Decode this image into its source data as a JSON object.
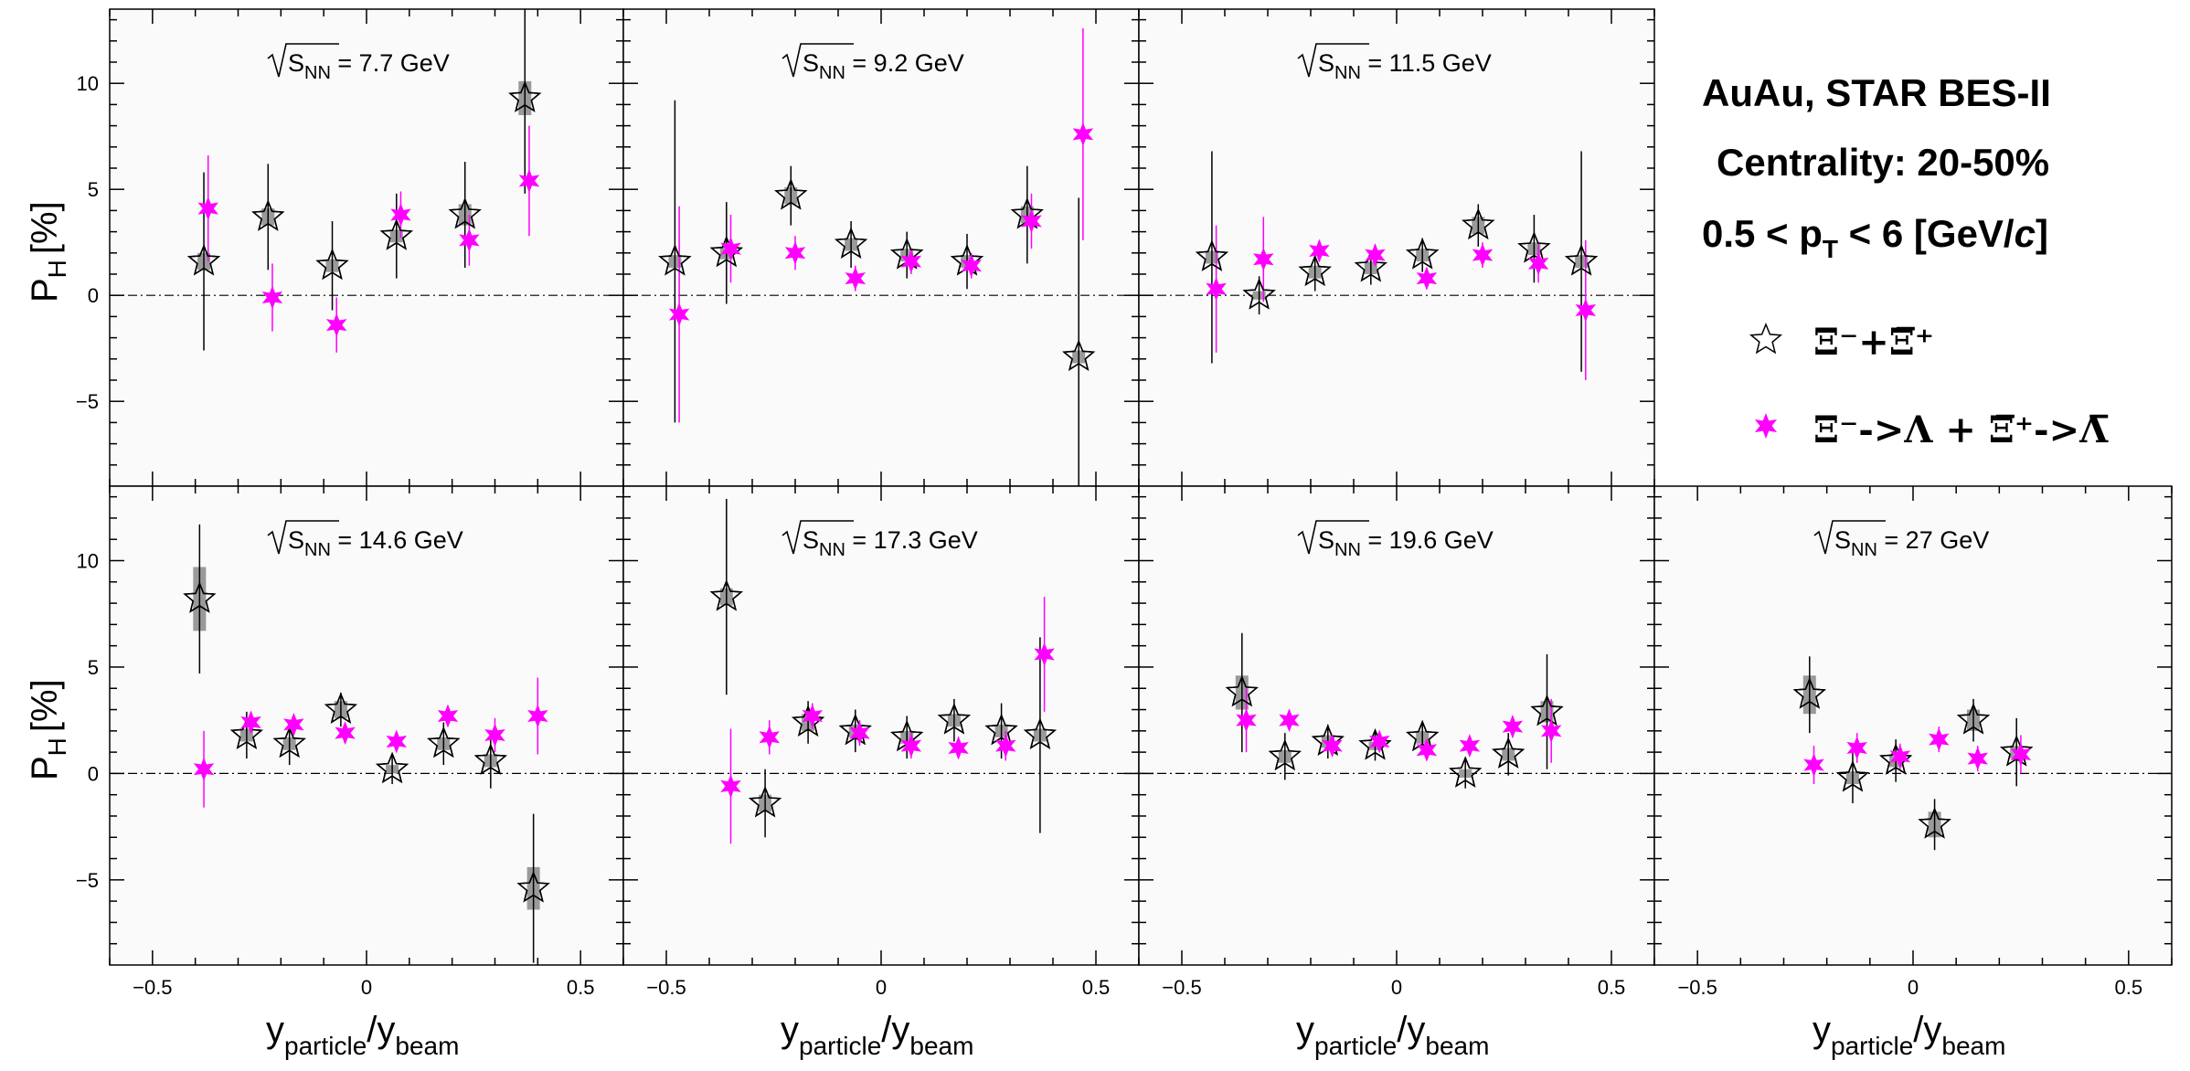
{
  "chart_data": {
    "type": "scatter",
    "title_lines": [
      "AuAu, STAR BES-II",
      "Centrality: 20-50%"
    ],
    "kinematic_line": {
      "prefix": "0.5 < p",
      "sub": "T",
      "suffix": " < 6 [GeV/",
      "italic": "c",
      "end": "]"
    },
    "ylabel": {
      "main": "P",
      "sub": "H",
      "unit": "[%]"
    },
    "xlabel": {
      "part1": "y",
      "sub1": "particle",
      "part2": "/y",
      "sub2": "beam"
    },
    "xlim": [
      -0.6,
      0.6
    ],
    "ylim": [
      -9,
      13.5
    ],
    "x_ticks": [
      -0.5,
      0,
      0.5
    ],
    "x_tick_labels": [
      "−0.5",
      "0",
      "0.5"
    ],
    "y_ticks": [
      -5,
      0,
      5,
      10
    ],
    "y_tick_labels": [
      "−5",
      "0",
      "5",
      "10"
    ],
    "legend": [
      {
        "name": "Ξ⁻+Ξ̅⁺",
        "marker": "open-star",
        "color": "#ffffff"
      },
      {
        "name": "Ξ⁻->Λ + Ξ̅⁺->Λ̅",
        "marker": "full-star",
        "color": "#ff00ff"
      }
    ],
    "colors": {
      "series_open": "#ffffff",
      "series_magenta": "#ff00ff",
      "sys_box": "#9a9a9a",
      "panel_bg": "#fafafa"
    },
    "panels": [
      {
        "energy_label": "7.7 GeV",
        "row": 0,
        "col": 0,
        "open": [
          {
            "x": -0.38,
            "y": 1.6,
            "err": 4.2,
            "sys": 0.4
          },
          {
            "x": -0.23,
            "y": 3.7,
            "err": 2.5,
            "sys": 0.4
          },
          {
            "x": -0.08,
            "y": 1.4,
            "err": 2.1,
            "sys": 0.3
          },
          {
            "x": 0.07,
            "y": 2.8,
            "err": 2.0,
            "sys": 0.3
          },
          {
            "x": 0.23,
            "y": 3.8,
            "err": 2.5,
            "sys": 0.5
          },
          {
            "x": 0.37,
            "y": 9.3,
            "err": 4.5,
            "sys": 0.8
          }
        ],
        "magenta": [
          {
            "x": -0.37,
            "y": 4.1,
            "err": 2.5
          },
          {
            "x": -0.22,
            "y": -0.1,
            "err": 1.6
          },
          {
            "x": -0.07,
            "y": -1.4,
            "err": 1.3
          },
          {
            "x": 0.08,
            "y": 3.8,
            "err": 1.1
          },
          {
            "x": 0.24,
            "y": 2.6,
            "err": 1.2
          },
          {
            "x": 0.38,
            "y": 5.4,
            "err": 2.6
          }
        ]
      },
      {
        "energy_label": "9.2 GeV",
        "row": 0,
        "col": 1,
        "open": [
          {
            "x": -0.48,
            "y": 1.6,
            "err": 7.6,
            "sys": 0.3
          },
          {
            "x": -0.36,
            "y": 2.0,
            "err": 2.4,
            "sys": 0.3
          },
          {
            "x": -0.21,
            "y": 4.7,
            "err": 1.4,
            "sys": 0.4
          },
          {
            "x": -0.07,
            "y": 2.4,
            "err": 1.1,
            "sys": 0.3
          },
          {
            "x": 0.06,
            "y": 1.9,
            "err": 1.1,
            "sys": 0.3
          },
          {
            "x": 0.2,
            "y": 1.6,
            "err": 1.3,
            "sys": 0.3
          },
          {
            "x": 0.34,
            "y": 3.8,
            "err": 2.3,
            "sys": 0.4
          },
          {
            "x": 0.46,
            "y": -2.9,
            "err": 7.5,
            "sys": 0.3
          }
        ],
        "magenta": [
          {
            "x": -0.47,
            "y": -0.9,
            "err": 5.1
          },
          {
            "x": -0.35,
            "y": 2.2,
            "err": 1.6
          },
          {
            "x": -0.2,
            "y": 2.0,
            "err": 0.8
          },
          {
            "x": -0.06,
            "y": 0.8,
            "err": 0.6
          },
          {
            "x": 0.07,
            "y": 1.6,
            "err": 0.6
          },
          {
            "x": 0.21,
            "y": 1.4,
            "err": 0.6
          },
          {
            "x": 0.35,
            "y": 3.5,
            "err": 1.3
          },
          {
            "x": 0.47,
            "y": 7.6,
            "err": 5.0
          }
        ]
      },
      {
        "energy_label": "11.5 GeV",
        "row": 0,
        "col": 2,
        "open": [
          {
            "x": -0.43,
            "y": 1.8,
            "err": 5.0,
            "sys": 0.3
          },
          {
            "x": -0.32,
            "y": 0.0,
            "err": 0.9,
            "sys": 0.2
          },
          {
            "x": -0.19,
            "y": 1.1,
            "err": 0.9,
            "sys": 0.3
          },
          {
            "x": -0.06,
            "y": 1.3,
            "err": 0.8,
            "sys": 0.3
          },
          {
            "x": 0.06,
            "y": 1.9,
            "err": 0.8,
            "sys": 0.3
          },
          {
            "x": 0.19,
            "y": 3.3,
            "err": 1.0,
            "sys": 0.4
          },
          {
            "x": 0.32,
            "y": 2.2,
            "err": 1.6,
            "sys": 0.3
          },
          {
            "x": 0.43,
            "y": 1.6,
            "err": 5.2,
            "sys": 0.3
          }
        ],
        "magenta": [
          {
            "x": -0.42,
            "y": 0.3,
            "err": 3.0
          },
          {
            "x": -0.31,
            "y": 1.7,
            "err": 2.0
          },
          {
            "x": -0.18,
            "y": 2.1,
            "err": 0.5
          },
          {
            "x": -0.05,
            "y": 1.9,
            "err": 0.5
          },
          {
            "x": 0.07,
            "y": 0.8,
            "err": 0.5
          },
          {
            "x": 0.2,
            "y": 1.9,
            "err": 0.6
          },
          {
            "x": 0.33,
            "y": 1.5,
            "err": 0.9
          },
          {
            "x": 0.44,
            "y": -0.7,
            "err": 3.3
          }
        ]
      },
      {
        "energy_label": "14.6 GeV",
        "row": 1,
        "col": 0,
        "open": [
          {
            "x": -0.39,
            "y": 8.2,
            "err": 3.5,
            "sys": 1.5
          },
          {
            "x": -0.28,
            "y": 1.8,
            "err": 1.1,
            "sys": 0.3
          },
          {
            "x": -0.18,
            "y": 1.4,
            "err": 1.0,
            "sys": 0.3
          },
          {
            "x": -0.06,
            "y": 3.0,
            "err": 0.8,
            "sys": 0.4
          },
          {
            "x": 0.06,
            "y": 0.2,
            "err": 0.7,
            "sys": 0.2
          },
          {
            "x": 0.18,
            "y": 1.4,
            "err": 1.0,
            "sys": 0.3
          },
          {
            "x": 0.29,
            "y": 0.6,
            "err": 1.3,
            "sys": 0.3
          },
          {
            "x": 0.39,
            "y": -5.4,
            "err": 3.5,
            "sys": 1.0
          }
        ],
        "magenta": [
          {
            "x": -0.38,
            "y": 0.2,
            "err": 1.8
          },
          {
            "x": -0.27,
            "y": 2.4,
            "err": 0.5
          },
          {
            "x": -0.17,
            "y": 2.3,
            "err": 0.4
          },
          {
            "x": -0.05,
            "y": 1.9,
            "err": 0.4
          },
          {
            "x": 0.07,
            "y": 1.5,
            "err": 0.4
          },
          {
            "x": 0.19,
            "y": 2.7,
            "err": 0.4
          },
          {
            "x": 0.3,
            "y": 1.8,
            "err": 0.8
          },
          {
            "x": 0.4,
            "y": 2.7,
            "err": 1.8
          }
        ]
      },
      {
        "energy_label": "17.3 GeV",
        "row": 1,
        "col": 1,
        "open": [
          {
            "x": -0.36,
            "y": 8.3,
            "err": 4.6,
            "sys": 0.4
          },
          {
            "x": -0.27,
            "y": -1.4,
            "err": 1.6,
            "sys": 0.4
          },
          {
            "x": -0.17,
            "y": 2.4,
            "err": 1.0,
            "sys": 0.4
          },
          {
            "x": -0.06,
            "y": 2.0,
            "err": 1.0,
            "sys": 0.3
          },
          {
            "x": 0.06,
            "y": 1.7,
            "err": 1.0,
            "sys": 0.3
          },
          {
            "x": 0.17,
            "y": 2.5,
            "err": 1.0,
            "sys": 0.3
          },
          {
            "x": 0.28,
            "y": 2.0,
            "err": 1.3,
            "sys": 0.3
          },
          {
            "x": 0.37,
            "y": 1.8,
            "err": 4.6,
            "sys": 0.3
          }
        ],
        "magenta": [
          {
            "x": -0.35,
            "y": -0.6,
            "err": 2.7
          },
          {
            "x": -0.26,
            "y": 1.7,
            "err": 0.8
          },
          {
            "x": -0.16,
            "y": 2.7,
            "err": 0.6
          },
          {
            "x": -0.05,
            "y": 1.9,
            "err": 0.6
          },
          {
            "x": 0.07,
            "y": 1.3,
            "err": 0.6
          },
          {
            "x": 0.18,
            "y": 1.2,
            "err": 0.5
          },
          {
            "x": 0.29,
            "y": 1.3,
            "err": 0.7
          },
          {
            "x": 0.38,
            "y": 5.6,
            "err": 2.7
          }
        ]
      },
      {
        "energy_label": "19.6 GeV",
        "row": 1,
        "col": 2,
        "open": [
          {
            "x": -0.36,
            "y": 3.8,
            "err": 2.8,
            "sys": 0.8
          },
          {
            "x": -0.26,
            "y": 0.8,
            "err": 1.1,
            "sys": 0.3
          },
          {
            "x": -0.16,
            "y": 1.5,
            "err": 0.8,
            "sys": 0.3
          },
          {
            "x": -0.05,
            "y": 1.3,
            "err": 0.7,
            "sys": 0.2
          },
          {
            "x": 0.06,
            "y": 1.7,
            "err": 0.7,
            "sys": 0.3
          },
          {
            "x": 0.16,
            "y": 0.0,
            "err": 0.7,
            "sys": 0.2
          },
          {
            "x": 0.26,
            "y": 0.9,
            "err": 1.0,
            "sys": 0.3
          },
          {
            "x": 0.35,
            "y": 2.9,
            "err": 2.7,
            "sys": 0.5
          }
        ],
        "magenta": [
          {
            "x": -0.35,
            "y": 2.5,
            "err": 1.5
          },
          {
            "x": -0.25,
            "y": 2.5,
            "err": 0.4
          },
          {
            "x": -0.15,
            "y": 1.3,
            "err": 0.4
          },
          {
            "x": -0.04,
            "y": 1.5,
            "err": 0.4
          },
          {
            "x": 0.07,
            "y": 1.1,
            "err": 0.4
          },
          {
            "x": 0.17,
            "y": 1.3,
            "err": 0.4
          },
          {
            "x": 0.27,
            "y": 2.2,
            "err": 0.5
          },
          {
            "x": 0.36,
            "y": 2.0,
            "err": 1.5
          }
        ]
      },
      {
        "energy_label": "27 GeV",
        "row": 1,
        "col": 3,
        "open": [
          {
            "x": -0.24,
            "y": 3.7,
            "err": 1.8,
            "sys": 0.9
          },
          {
            "x": -0.14,
            "y": -0.2,
            "err": 1.2,
            "sys": 0.3
          },
          {
            "x": -0.04,
            "y": 0.6,
            "err": 1.0,
            "sys": 0.3
          },
          {
            "x": 0.05,
            "y": -2.4,
            "err": 1.2,
            "sys": 0.6
          },
          {
            "x": 0.14,
            "y": 2.5,
            "err": 1.0,
            "sys": 0.5
          },
          {
            "x": 0.24,
            "y": 1.0,
            "err": 1.6,
            "sys": 0.3
          }
        ],
        "magenta": [
          {
            "x": -0.23,
            "y": 0.4,
            "err": 0.9
          },
          {
            "x": -0.13,
            "y": 1.2,
            "err": 0.7
          },
          {
            "x": -0.03,
            "y": 0.8,
            "err": 0.6
          },
          {
            "x": 0.06,
            "y": 1.6,
            "err": 0.6
          },
          {
            "x": 0.15,
            "y": 0.7,
            "err": 0.6
          },
          {
            "x": 0.25,
            "y": 0.9,
            "err": 0.9
          }
        ]
      }
    ]
  }
}
